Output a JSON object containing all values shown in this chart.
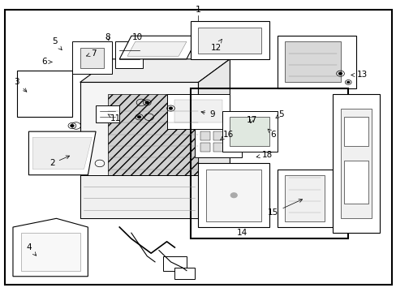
{
  "bg_color": "#ffffff",
  "border_color": "#000000",
  "fig_width": 4.89,
  "fig_height": 3.6,
  "dpi": 100,
  "label_fontsize": 7.5,
  "label_fontsize_large": 8
}
